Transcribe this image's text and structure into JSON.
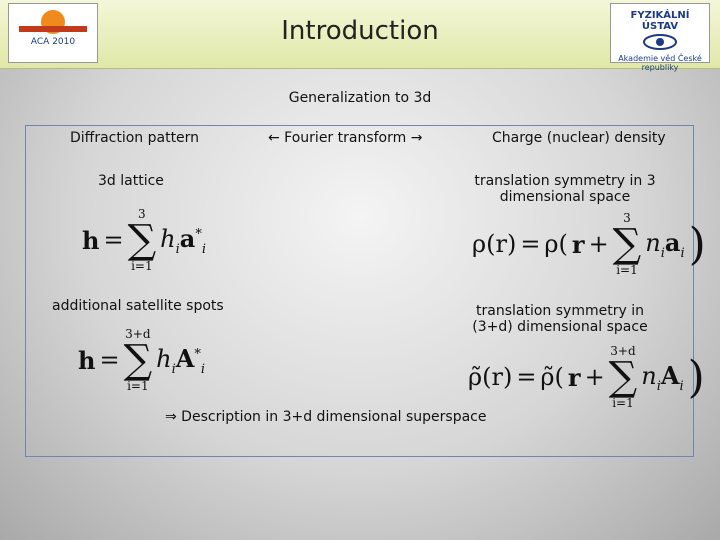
{
  "header": {
    "title": "Introduction",
    "left_logo": "ACA 2010",
    "right_logo": "FYZIKÁLNÍ ÚSTAV",
    "right_logo_sub": "Akademie věd České republiky"
  },
  "subtitle": "Generalization to 3d",
  "columns": {
    "left": "Diffraction pattern",
    "middle": "← Fourier transform →",
    "right": "Charge (nuclear) density"
  },
  "rows": [
    {
      "left": "3d lattice",
      "right": "translation symmetry in 3 dimensional space"
    },
    {
      "left": "additional satellite spots",
      "right": "translation symmetry in (3+d) dimensional space"
    }
  ],
  "formulas": [
    {
      "lhs": "h",
      "eq": "=",
      "upper": "3",
      "sigma": "∑",
      "lower": "i=1",
      "factor": "h",
      "factor_sub": "i",
      "vector": "a",
      "vector_sub": "i",
      "vector_sup": "*"
    },
    {
      "lhs": "ρ(r)",
      "eq": "=",
      "open": "ρ(",
      "r": "r",
      "plus": "+",
      "upper": "3",
      "sigma": "∑",
      "lower": "i=1",
      "factor": "n",
      "factor_sub": "i",
      "vector": "a",
      "vector_sub": "i",
      "close": ")"
    },
    {
      "lhs": "h",
      "eq": "=",
      "upper": "3+d",
      "sigma": "∑",
      "lower": "i=1",
      "factor": "h",
      "factor_sub": "i",
      "vector": "A",
      "vector_sub": "i",
      "vector_sup": "*"
    },
    {
      "lhs": "ρ̃(r)",
      "eq": "=",
      "open": "ρ̃(",
      "r": "r",
      "plus": "+",
      "upper": "3+d",
      "sigma": "∑",
      "lower": "i=1",
      "factor": "n",
      "factor_sub": "i",
      "vector": "A",
      "vector_sub": "i",
      "close": ")"
    }
  ],
  "conclusion": "⇒  Description in 3+d dimensional superspace"
}
